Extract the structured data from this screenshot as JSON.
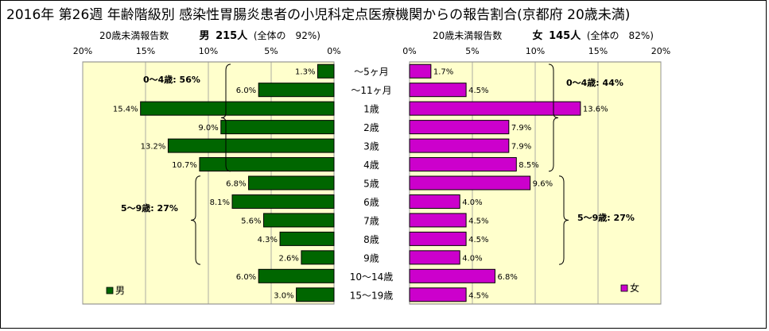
{
  "title": "2016年 第26週 年齢階級別 感染性胃腸炎患者の小児科定点医療機関からの報告割合(京都府 20歳未満)",
  "male_header": {
    "sub": "20歳未満報告数",
    "label": "男",
    "count": "215人",
    "share": "(全体の　92%)"
  },
  "female_header": {
    "sub": "20歳未満報告数",
    "label": "女",
    "count": "145人",
    "share": "(全体の　82%)"
  },
  "colors": {
    "male": "#006600",
    "female": "#cc00cc",
    "plot_bg": "#ffffcc",
    "grid": "#999999"
  },
  "chart_data": [
    {
      "type": "bar",
      "orientation": "horizontal-reversed",
      "series": [
        {
          "name": "男",
          "values": [
            1.3,
            6.0,
            15.4,
            9.0,
            13.2,
            10.7,
            6.8,
            8.1,
            5.6,
            4.3,
            2.6,
            6.0,
            3.0
          ]
        }
      ],
      "categories": [
        "～5ヶ月",
        "～11ヶ月",
        "1歳",
        "2歳",
        "3歳",
        "4歳",
        "5歳",
        "6歳",
        "7歳",
        "8歳",
        "9歳",
        "10～14歳",
        "15～19歳"
      ],
      "value_labels": [
        "1.3%",
        "6.0%",
        "15.4%",
        "9.0%",
        "13.2%",
        "10.7%",
        "6.8%",
        "8.1%",
        "5.6%",
        "4.3%",
        "2.6%",
        "6.0%",
        "3.0%"
      ],
      "xlim": [
        0,
        20
      ],
      "xticks": [
        "20%",
        "15%",
        "10%",
        "5%",
        "0%"
      ],
      "groups": [
        {
          "label": "0～4歳: 56%"
        },
        {
          "label": "5～9歳: 27%"
        }
      ],
      "legend": "男",
      "grid": true
    },
    {
      "type": "bar",
      "orientation": "horizontal",
      "series": [
        {
          "name": "女",
          "values": [
            1.7,
            4.5,
            13.6,
            7.9,
            7.9,
            8.5,
            9.6,
            4.0,
            4.5,
            4.5,
            4.0,
            6.8,
            4.5
          ]
        }
      ],
      "categories": [
        "～5ヶ月",
        "～11ヶ月",
        "1歳",
        "2歳",
        "3歳",
        "4歳",
        "5歳",
        "6歳",
        "7歳",
        "8歳",
        "9歳",
        "10～14歳",
        "15～19歳"
      ],
      "value_labels": [
        "1.7%",
        "4.5%",
        "13.6%",
        "7.9%",
        "7.9%",
        "8.5%",
        "9.6%",
        "4.0%",
        "4.5%",
        "4.5%",
        "4.0%",
        "6.8%",
        "4.5%"
      ],
      "xlim": [
        0,
        20
      ],
      "xticks": [
        "0%",
        "5%",
        "10%",
        "15%",
        "20%"
      ],
      "groups": [
        {
          "label": "0～4歳: 44%"
        },
        {
          "label": "5～9歳: 27%"
        }
      ],
      "legend": "女",
      "grid": true
    }
  ]
}
